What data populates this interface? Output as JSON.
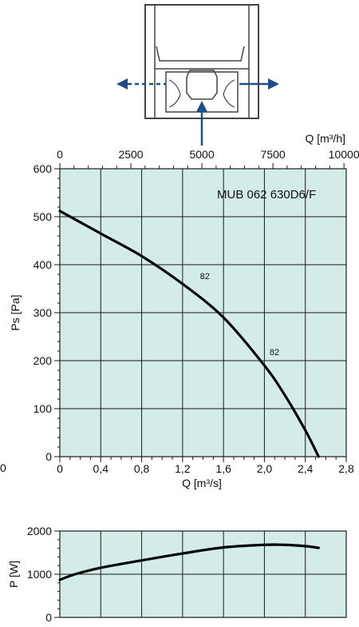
{
  "colors": {
    "plot_bg": "#d4ece8",
    "grid": "#1a1a1a",
    "curve": "#000000",
    "arrow": "#1f4e8c",
    "housing": "#444444"
  },
  "chart_data": [
    {
      "type": "line",
      "title": "MUB 062 630D6/F",
      "xlabel": "Q [m³/s]",
      "ylabel": "Ps [Pa]",
      "xlim": [
        0,
        2.8
      ],
      "ylim": [
        0,
        600
      ],
      "x_ticks": [
        0,
        0.4,
        0.8,
        1.2,
        1.6,
        2.0,
        2.4,
        2.8
      ],
      "x_tick_labels": [
        "0",
        "0,4",
        "0,8",
        "1,2",
        "1,6",
        "2,0",
        "2,4",
        "2,8"
      ],
      "y_ticks": [
        0,
        100,
        200,
        300,
        400,
        500,
        600
      ],
      "y_tick_labels": [
        "0",
        "100",
        "200",
        "300",
        "400",
        "500",
        "600"
      ],
      "secondary_x": {
        "label": "Q [m³/h]",
        "lim": [
          0,
          10080
        ],
        "ticks": [
          0,
          2500,
          5000,
          7500,
          10000
        ],
        "tick_labels": [
          "0",
          "2500",
          "5000",
          "7500",
          "10000"
        ]
      },
      "grid": true,
      "series": [
        {
          "x": [
            0,
            0.4,
            0.8,
            1.2,
            1.6,
            2.0,
            2.2,
            2.4,
            2.53
          ],
          "y": [
            512,
            465,
            418,
            360,
            290,
            190,
            128,
            55,
            0
          ]
        }
      ],
      "annotations": [
        {
          "text": "82",
          "x": 1.37,
          "y": 370
        },
        {
          "text": "82",
          "x": 2.05,
          "y": 212
        }
      ],
      "outside_labels": [
        {
          "text": "0"
        }
      ]
    },
    {
      "type": "line",
      "ylabel": "P [W]",
      "xlim": [
        0,
        2.8
      ],
      "ylim": [
        0,
        2000
      ],
      "y_ticks": [
        0,
        1000,
        2000
      ],
      "y_tick_labels": [
        "0",
        "1000",
        "2000"
      ],
      "grid": true,
      "series": [
        {
          "x": [
            0,
            0.15,
            0.4,
            0.8,
            1.2,
            1.6,
            2.0,
            2.2,
            2.4,
            2.53
          ],
          "y": [
            870,
            1000,
            1150,
            1320,
            1480,
            1620,
            1680,
            1680,
            1650,
            1610
          ]
        }
      ]
    }
  ]
}
